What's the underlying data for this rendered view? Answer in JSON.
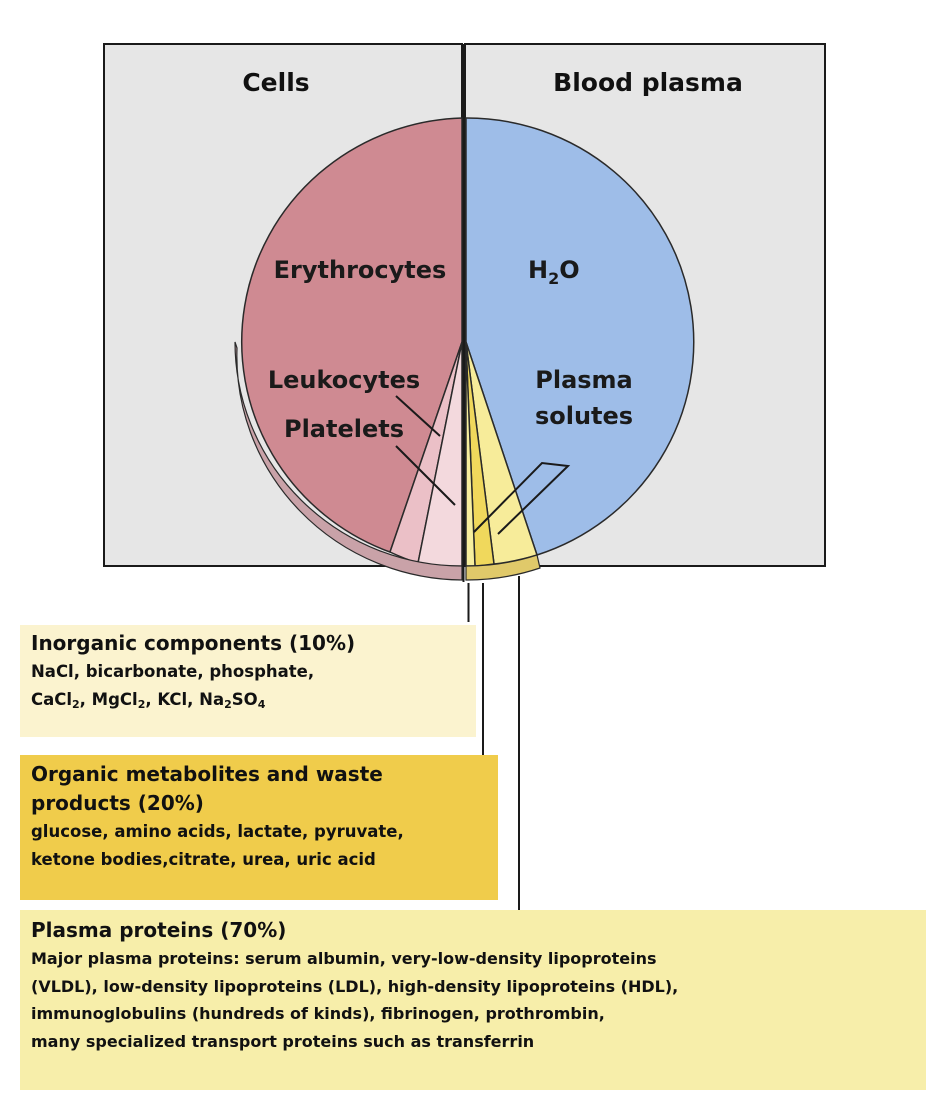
{
  "cells_title": "Cells",
  "plasma_title": "Blood plasma",
  "labels": {
    "erythrocytes": "Erythrocytes",
    "h2o_h": "H",
    "h2o_sub": "2",
    "h2o_o": "O",
    "leukocytes": "Leukocytes",
    "platelets": "Platelets",
    "plasma_solutes_line1": "Plasma",
    "plasma_solutes_line2": "solutes"
  },
  "inorganic": {
    "title": "Inorganic components (10%)",
    "line1": "NaCl, bicarbonate, phosphate,",
    "cacl": "CaCl",
    "sub2a": "2",
    "mgcl": ", MgCl",
    "sub2b": "2",
    "kcl_na": ", KCl, Na",
    "sub2c": "2",
    "so": "SO",
    "sub4": "4"
  },
  "organic": {
    "title_line1": "Organic metabolites and waste",
    "title_line2": "products (20%)",
    "line1": "glucose, amino acids, lactate, pyruvate,",
    "line2": "ketone bodies,citrate, urea, uric acid"
  },
  "proteins": {
    "title": "Plasma proteins (70%)",
    "line1": "Major plasma proteins:  serum albumin, very-low-density lipoproteins",
    "line2": "(VLDL), low-density lipoproteins (LDL), high-density lipoproteins (HDL),",
    "line3": "immunoglobulins (hundreds of kinds), fibrinogen, prothrombin,",
    "line4": "many specialized transport proteins such as transferrin"
  },
  "colors": {
    "panel_bg": "#e6e6e6",
    "erythrocytes": "#cf8a92",
    "plasma_water": "#9ebde8",
    "leukocytes": "#ebc0c7",
    "platelets": "#f3d9dd",
    "solute_inorganic": "#f7ef9e",
    "solute_organic": "#f0d85c",
    "solute_proteins": "#f7ec9a",
    "box_inorganic": "#fbf3cf",
    "box_organic": "#f0cc4b",
    "box_proteins": "#f7eeaa"
  }
}
